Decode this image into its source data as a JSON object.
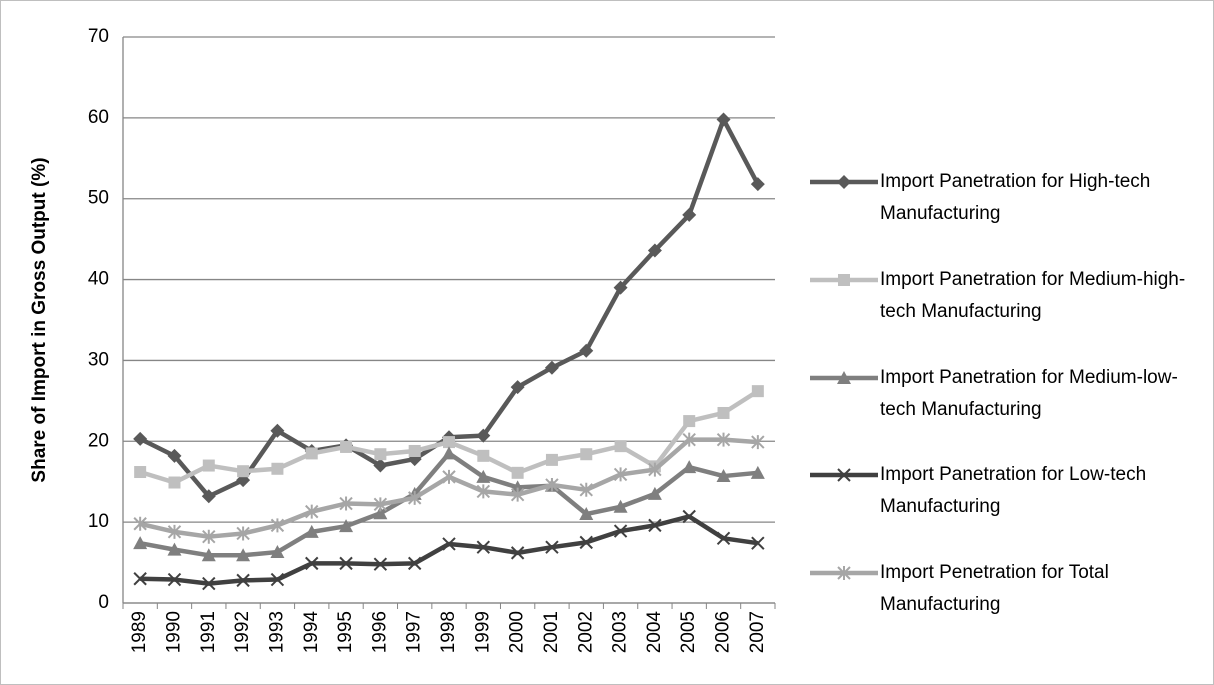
{
  "chart_data": {
    "type": "line",
    "y_label": "Share of Import in Gross Output (%)",
    "categories": [
      "1989",
      "1990",
      "1991",
      "1992",
      "1993",
      "1994",
      "1995",
      "1996",
      "1997",
      "1998",
      "1999",
      "2000",
      "2001",
      "2002",
      "2003",
      "2004",
      "2005",
      "2006",
      "2007"
    ],
    "ylim": [
      0,
      70
    ],
    "yticks": [
      0,
      10,
      20,
      30,
      40,
      50,
      60,
      70
    ],
    "grid": true,
    "series": [
      {
        "name": "Import Panetration for High-tech Manufacturing",
        "color": "#595959",
        "marker": "diamond",
        "values": [
          20.3,
          18.2,
          13.2,
          15.2,
          21.3,
          18.8,
          19.5,
          17.0,
          17.8,
          20.5,
          20.7,
          26.7,
          29.1,
          31.2,
          39.0,
          43.6,
          48.0,
          59.8,
          51.8
        ]
      },
      {
        "name": "Import Panetration for Medium-high-tech Manufacturing",
        "color": "#bfbfbf",
        "marker": "square",
        "values": [
          16.2,
          14.9,
          17.0,
          16.3,
          16.6,
          18.5,
          19.3,
          18.4,
          18.8,
          19.9,
          18.2,
          16.1,
          17.7,
          18.4,
          19.4,
          16.9,
          22.5,
          23.5,
          26.2
        ]
      },
      {
        "name": "Import Panetration for Medium-low-tech Manufacturing",
        "color": "#7f7f7f",
        "marker": "triangle",
        "values": [
          7.4,
          6.6,
          5.9,
          5.9,
          6.3,
          8.8,
          9.5,
          11.1,
          13.5,
          18.5,
          15.6,
          14.3,
          14.5,
          11.0,
          11.9,
          13.5,
          16.8,
          15.7,
          16.1
        ]
      },
      {
        "name": "Import Panetration for Low-tech Manufacturing",
        "color": "#404040",
        "marker": "x",
        "values": [
          3.0,
          2.9,
          2.4,
          2.8,
          2.9,
          4.9,
          4.9,
          4.8,
          4.9,
          7.3,
          6.9,
          6.2,
          6.9,
          7.5,
          8.9,
          9.6,
          10.7,
          8.0,
          7.4
        ]
      },
      {
        "name": "Import Penetration for Total Manufacturing",
        "color": "#a6a6a6",
        "marker": "star",
        "values": [
          9.8,
          8.8,
          8.2,
          8.6,
          9.6,
          11.3,
          12.3,
          12.2,
          13.0,
          15.6,
          13.8,
          13.4,
          14.6,
          14.0,
          15.9,
          16.5,
          20.2,
          20.2,
          19.9
        ]
      }
    ]
  }
}
